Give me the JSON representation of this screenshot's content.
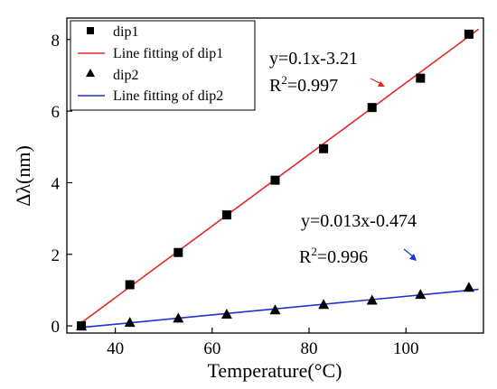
{
  "chart_data": {
    "type": "scatter",
    "xlabel": "Temperature(°C)",
    "ylabel": "Δλ(nm)",
    "xlim": [
      30,
      116
    ],
    "ylim": [
      -0.2,
      8.6
    ],
    "xticks": [
      40,
      60,
      80,
      100
    ],
    "yticks": [
      0,
      2,
      4,
      6,
      8
    ],
    "x_tick_labels": [
      "40",
      "60",
      "80",
      "100"
    ],
    "y_tick_labels": [
      "0",
      "2",
      "4",
      "6",
      "8"
    ],
    "legend_position": "top-left",
    "series": [
      {
        "name": "dip1",
        "marker": "square",
        "color": "#000000",
        "x": [
          33,
          43,
          53,
          63,
          73,
          83,
          93,
          103,
          113
        ],
        "y": [
          0.0,
          1.15,
          2.05,
          3.1,
          4.07,
          4.95,
          6.1,
          6.92,
          8.15
        ]
      },
      {
        "name": "dip2",
        "marker": "triangle",
        "color": "#000000",
        "x": [
          33,
          43,
          53,
          63,
          73,
          83,
          93,
          103,
          113
        ],
        "y": [
          0.0,
          0.1,
          0.22,
          0.33,
          0.45,
          0.6,
          0.72,
          0.88,
          1.08
        ]
      }
    ],
    "fits": [
      {
        "name": "Line fitting of dip1",
        "color": "#e32626",
        "slope": 0.1,
        "intercept": -3.21,
        "x_range": [
          33,
          115
        ]
      },
      {
        "name": "Line fitting of dip2",
        "color": "#1f2fd0",
        "slope": 0.013,
        "intercept": -0.474,
        "x_range": [
          33,
          115
        ]
      }
    ],
    "annotations": [
      {
        "equation": "y=0.1x-3.21",
        "r2_prefix": "R",
        "r2_sup": "2",
        "r2_value": "=0.997",
        "arrow_color": "#e32626"
      },
      {
        "equation": "y=0.013x-0.474",
        "r2_prefix": "R",
        "r2_sup": "2",
        "r2_value": "=0.996",
        "arrow_color": "#1f2fd0"
      }
    ]
  }
}
